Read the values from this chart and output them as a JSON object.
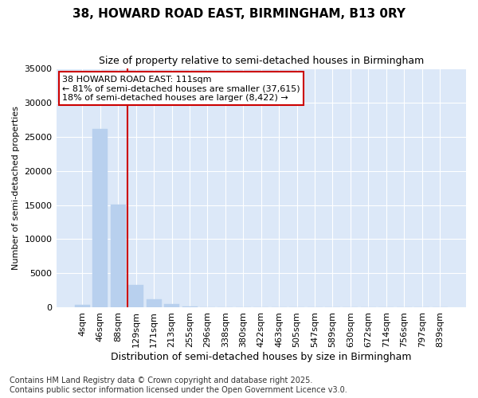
{
  "title": "38, HOWARD ROAD EAST, BIRMINGHAM, B13 0RY",
  "subtitle": "Size of property relative to semi-detached houses in Birmingham",
  "xlabel": "Distribution of semi-detached houses by size in Birmingham",
  "ylabel": "Number of semi-detached properties",
  "categories": [
    "4sqm",
    "46sqm",
    "88sqm",
    "129sqm",
    "171sqm",
    "213sqm",
    "255sqm",
    "296sqm",
    "338sqm",
    "380sqm",
    "422sqm",
    "463sqm",
    "505sqm",
    "547sqm",
    "589sqm",
    "630sqm",
    "672sqm",
    "714sqm",
    "756sqm",
    "797sqm",
    "839sqm"
  ],
  "bar_heights": [
    400,
    26100,
    15100,
    3300,
    1200,
    500,
    200,
    50,
    20,
    10,
    5,
    2,
    0,
    0,
    0,
    0,
    0,
    0,
    0,
    0,
    0
  ],
  "bar_color": "#b8d0ee",
  "bar_edge_color": "#b8d0ee",
  "property_line_x": 2.5,
  "property_line_color": "#cc0000",
  "ylim": [
    0,
    35000
  ],
  "yticks": [
    0,
    5000,
    10000,
    15000,
    20000,
    25000,
    30000,
    35000
  ],
  "annotation_text": "38 HOWARD ROAD EAST: 111sqm\n← 81% of semi-detached houses are smaller (37,615)\n18% of semi-detached houses are larger (8,422) →",
  "annotation_box_color": "#ffffff",
  "annotation_box_edge": "#cc0000",
  "footer_line1": "Contains HM Land Registry data © Crown copyright and database right 2025.",
  "footer_line2": "Contains public sector information licensed under the Open Government Licence v3.0.",
  "background_color": "#ffffff",
  "plot_background": "#dce8f8",
  "grid_color": "#ffffff",
  "title_fontsize": 11,
  "subtitle_fontsize": 9,
  "tick_fontsize": 8,
  "ylabel_fontsize": 8,
  "xlabel_fontsize": 9,
  "footer_fontsize": 7,
  "annotation_fontsize": 8
}
